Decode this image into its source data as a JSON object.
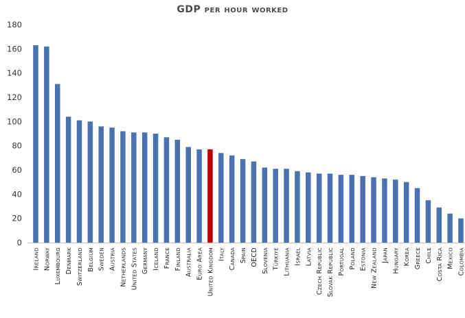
{
  "chart_data": {
    "type": "bar",
    "title": "GDP per hour worked",
    "xlabel": "",
    "ylabel": "",
    "ylim": [
      0,
      180
    ],
    "yticks": [
      0,
      20,
      40,
      60,
      80,
      100,
      120,
      140,
      160,
      180
    ],
    "grid": false,
    "legend": "none",
    "colors": {
      "default": "#4a72b0",
      "highlight": "#c00000"
    },
    "highlight": "United Kingdom",
    "categories": [
      "Ireland",
      "Norway",
      "Luxembourg",
      "Denmark",
      "Switzerland",
      "Belgium",
      "Sweden",
      "Austria",
      "Netherlands",
      "United States",
      "Germany",
      "Iceland",
      "France",
      "Finland",
      "Australia",
      "Euro Area",
      "United Kingdom",
      "Italy",
      "Canada",
      "Spain",
      "OECD",
      "Slovenia",
      "Türkiye",
      "Lithuania",
      "Israel",
      "Latvia",
      "Czech Republic",
      "Slovak Republic",
      "Portugal",
      "Poland",
      "Estonia",
      "New Zealand",
      "Japan",
      "Hungary",
      "Korea",
      "Greece",
      "Chile",
      "Costa Rica",
      "Mexico",
      "Colombia"
    ],
    "values": [
      163,
      162,
      131,
      104,
      101,
      100,
      96,
      95,
      92,
      91,
      91,
      90,
      87,
      85,
      79,
      77,
      77,
      74,
      72,
      69,
      67,
      62,
      61,
      61,
      59,
      58,
      57,
      57,
      56,
      56,
      55,
      54,
      53,
      52,
      50,
      45,
      35,
      29,
      24,
      20
    ]
  }
}
